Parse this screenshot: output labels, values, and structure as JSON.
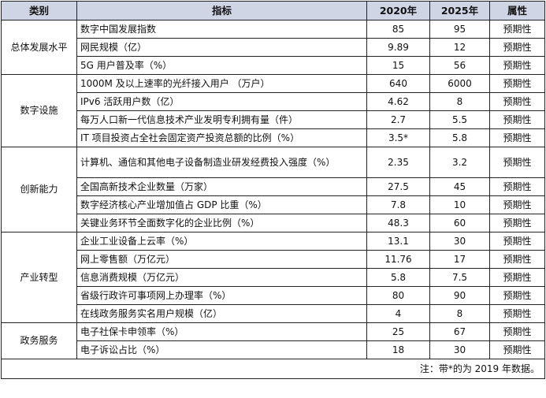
{
  "header": {
    "category": "类别",
    "indicator": "指标",
    "y2020": "2020年",
    "y2025": "2025年",
    "attribute": "属性"
  },
  "groups": [
    {
      "category": "总体发展水平",
      "rows": [
        {
          "indicator": "数字中国发展指数",
          "y2020": "85",
          "y2025": "95",
          "attribute": "预期性"
        },
        {
          "indicator": "网民规模（亿）",
          "y2020": "9.89",
          "y2025": "12",
          "attribute": "预期性"
        },
        {
          "indicator": "5G 用户普及率（%）",
          "y2020": "15",
          "y2025": "56",
          "attribute": "预期性"
        }
      ]
    },
    {
      "category": "数字设施",
      "rows": [
        {
          "indicator": "1000M 及以上速率的光纤接入用户 （万户）",
          "y2020": "640",
          "y2025": "6000",
          "attribute": "预期性"
        },
        {
          "indicator": "IPv6 活跃用户数（亿）",
          "y2020": "4.62",
          "y2025": "8",
          "attribute": "预期性"
        },
        {
          "indicator": "每万人口新一代信息技术产业发明专利拥有量（件）",
          "y2020": "2.7",
          "y2025": "5.5",
          "attribute": "预期性"
        },
        {
          "indicator": "IT 项目投资占全社会固定资产投资总额的比例（%）",
          "y2020": "3.5*",
          "y2025": "5.8",
          "attribute": "预期性"
        }
      ]
    },
    {
      "category": "创新能力",
      "rows": [
        {
          "indicator": "计算机、通信和其他电子设备制造业研发经费投入强度（%）",
          "y2020": "2.35",
          "y2025": "3.2",
          "attribute": "预期性"
        },
        {
          "indicator": "全国高新技术企业数量（万家）",
          "y2020": "27.5",
          "y2025": "45",
          "attribute": "预期性"
        },
        {
          "indicator": "数字经济核心产业增加值占 GDP 比重（%）",
          "y2020": "7.8",
          "y2025": "10",
          "attribute": "预期性"
        },
        {
          "indicator": "关键业务环节全面数字化的企业比例（%）",
          "y2020": "48.3",
          "y2025": "60",
          "attribute": "预期性"
        }
      ]
    },
    {
      "category": "产业转型",
      "rows": [
        {
          "indicator": "企业工业设备上云率（%）",
          "y2020": "13.1",
          "y2025": "30",
          "attribute": "预期性"
        },
        {
          "indicator": "网上零售额（万亿元）",
          "y2020": "11.76",
          "y2025": "17",
          "attribute": "预期性"
        },
        {
          "indicator": "信息消费规模（万亿元）",
          "y2020": "5.8",
          "y2025": "7.5",
          "attribute": "预期性"
        },
        {
          "indicator": "省级行政许可事项网上办理率（%）",
          "y2020": "80",
          "y2025": "90",
          "attribute": "预期性"
        },
        {
          "indicator": "在线政务服务实名用户规模（亿）",
          "y2020": "4",
          "y2025": "8",
          "attribute": "预期性"
        }
      ]
    },
    {
      "category": "政务服务",
      "rows": [
        {
          "indicator": "电子社保卡申领率（%）",
          "y2020": "25",
          "y2025": "67",
          "attribute": "预期性"
        },
        {
          "indicator": "电子诉讼占比（%）",
          "y2020": "18",
          "y2025": "30",
          "attribute": "预期性"
        }
      ]
    }
  ],
  "note": "注：带*的为 2019 年数据。"
}
